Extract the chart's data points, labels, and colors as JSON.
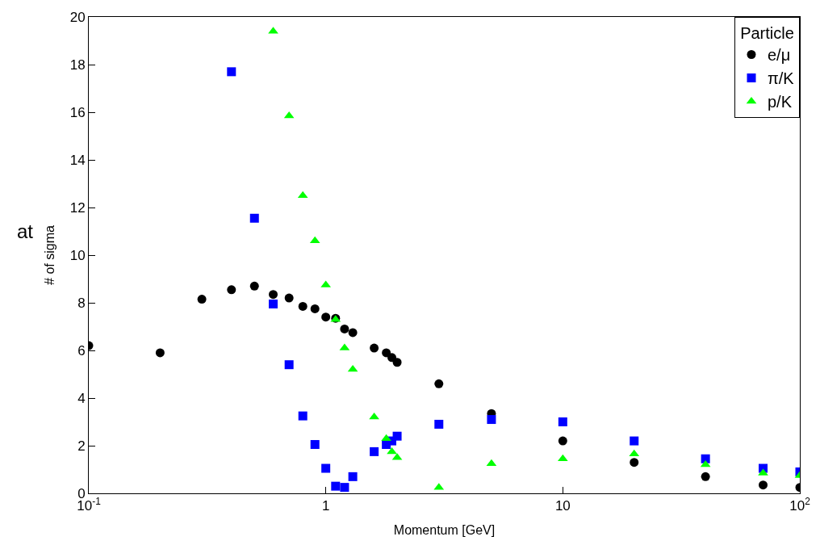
{
  "chart_data": {
    "type": "scatter",
    "xlabel": "Momentum [GeV]",
    "ylabel": "# of sigma",
    "legend_title": "Particle",
    "legend": "top right",
    "log": "x",
    "annotations": [
      "at"
    ],
    "xlim": [
      0.1,
      100
    ],
    "xticks": [
      {
        "value": 0.1,
        "label": "10$^{-1}$"
      },
      1,
      10,
      {
        "value": 100,
        "label": "10$^{2}$"
      }
    ],
    "ylim": [
      0,
      20
    ],
    "yticks": [
      0,
      2,
      4,
      6,
      8,
      10,
      12,
      14,
      16,
      18,
      20
    ],
    "series": [
      {
        "name": "e/μ",
        "color": "#000000",
        "marker": "circle",
        "x": [
          0.1,
          0.2,
          0.3,
          0.4,
          0.5,
          0.6,
          0.7,
          0.8,
          0.9,
          1.0,
          1.1,
          1.2,
          1.3,
          1.6,
          1.8,
          1.9,
          2.0,
          3,
          5,
          10,
          20,
          40,
          70,
          100
        ],
        "values": [
          6.2,
          5.9,
          8.15,
          8.55,
          8.7,
          8.35,
          8.2,
          7.85,
          7.75,
          7.4,
          7.35,
          6.9,
          6.75,
          6.1,
          5.9,
          5.7,
          5.5,
          4.6,
          3.35,
          2.2,
          1.3,
          0.7,
          0.35,
          0.25
        ]
      },
      {
        "name": "π/K",
        "color": "#0000ff",
        "marker": "square",
        "x": [
          0.4,
          0.5,
          0.6,
          0.7,
          0.8,
          0.9,
          1.0,
          1.1,
          1.2,
          1.3,
          1.6,
          1.8,
          1.9,
          2.0,
          3,
          5,
          10,
          20,
          40,
          70,
          100
        ],
        "values": [
          17.7,
          11.55,
          7.95,
          5.4,
          3.25,
          2.05,
          1.05,
          0.3,
          0.25,
          0.7,
          1.75,
          2.05,
          2.2,
          2.4,
          2.9,
          3.1,
          3.0,
          2.2,
          1.45,
          1.05,
          0.9
        ]
      },
      {
        "name": "p/K",
        "color": "#00ff00",
        "marker": "triangle",
        "x": [
          0.6,
          0.7,
          0.8,
          0.9,
          1.0,
          1.1,
          1.2,
          1.3,
          1.6,
          1.8,
          1.9,
          2.0,
          3,
          5,
          10,
          20,
          40,
          70,
          100
        ],
        "values": [
          19.4,
          15.85,
          12.5,
          10.6,
          8.75,
          7.3,
          6.1,
          5.2,
          3.2,
          2.3,
          1.75,
          1.5,
          0.25,
          1.25,
          1.45,
          1.65,
          1.2,
          0.85,
          0.75
        ]
      }
    ]
  }
}
